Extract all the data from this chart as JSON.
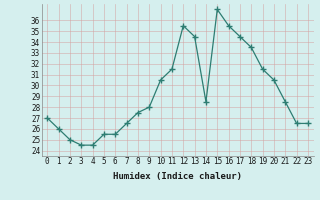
{
  "x": [
    0,
    1,
    2,
    3,
    4,
    5,
    6,
    7,
    8,
    9,
    10,
    11,
    12,
    13,
    14,
    15,
    16,
    17,
    18,
    19,
    20,
    21,
    22,
    23
  ],
  "y": [
    27,
    26,
    25,
    24.5,
    24.5,
    25.5,
    25.5,
    26.5,
    27.5,
    28,
    30.5,
    31.5,
    35.5,
    34.5,
    28.5,
    37,
    35.5,
    34.5,
    33.5,
    31.5,
    30.5,
    28.5,
    26.5,
    26.5
  ],
  "line_color": "#2d7d72",
  "marker_color": "#2d7d72",
  "background_color": "#d5efee",
  "grid_color": "#c8e0df",
  "xlabel": "Humidex (Indice chaleur)",
  "ylim": [
    23.5,
    37.5
  ],
  "xlim": [
    -0.5,
    23.5
  ],
  "yticks": [
    24,
    25,
    26,
    27,
    28,
    29,
    30,
    31,
    32,
    33,
    34,
    35,
    36
  ],
  "xticks": [
    0,
    1,
    2,
    3,
    4,
    5,
    6,
    7,
    8,
    9,
    10,
    11,
    12,
    13,
    14,
    15,
    16,
    17,
    18,
    19,
    20,
    21,
    22,
    23
  ]
}
